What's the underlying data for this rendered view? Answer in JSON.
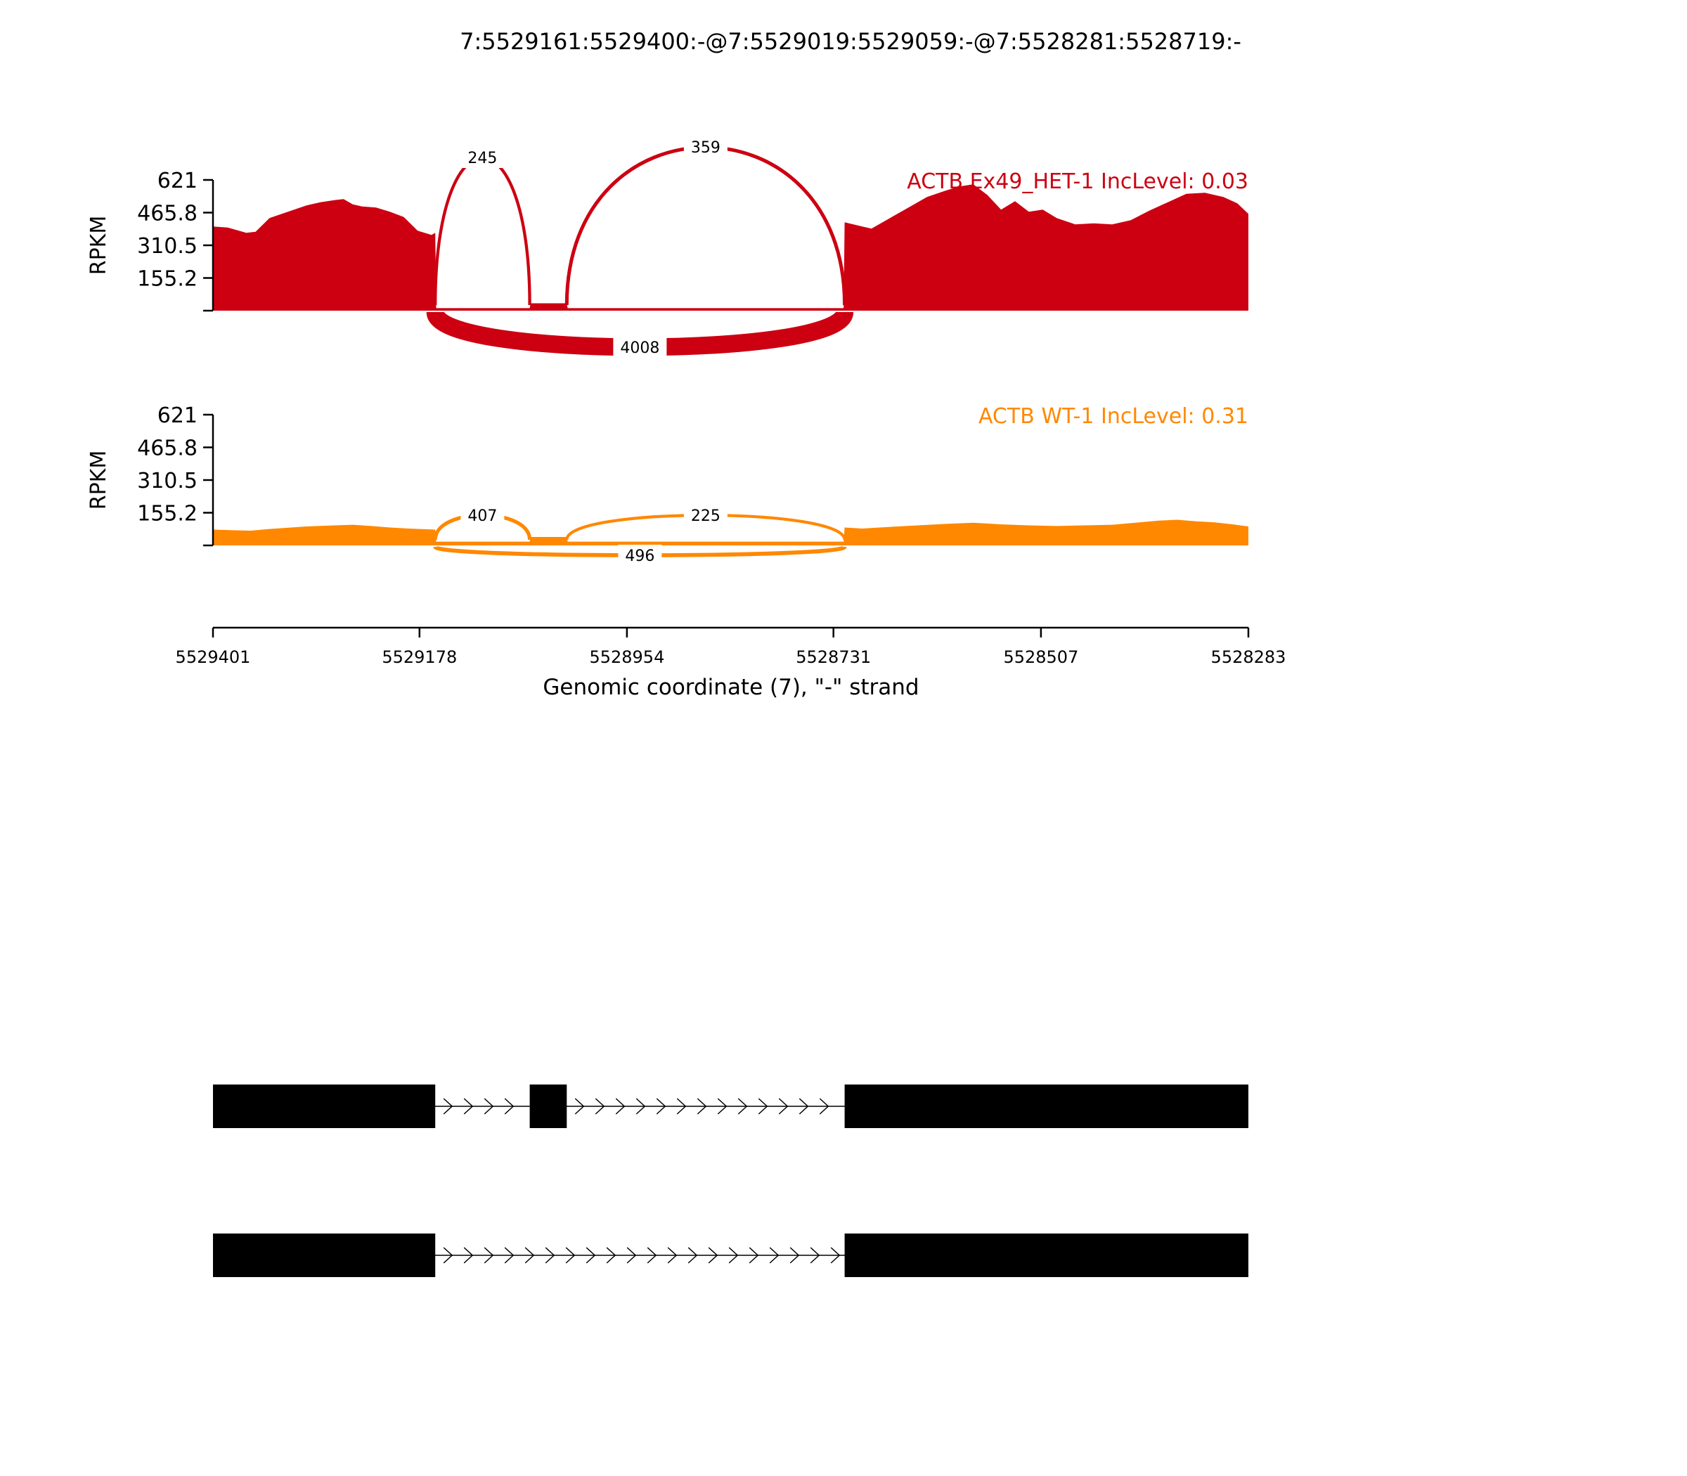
{
  "chart_data": {
    "type": "area",
    "subtype": "sashimi-plot",
    "title": "7:5529161:5529400:-@7:5529019:5529059:-@7:5528281:5528719:-",
    "xlabel": "Genomic coordinate (7), \"-\" strand",
    "x_ticks": [
      "5529401",
      "5529178",
      "5528954",
      "5528731",
      "5528507",
      "5528283"
    ],
    "xlim": [
      5529401,
      5528283
    ],
    "y_axis_label": "RPKM",
    "y_ticks": [
      "621",
      "465.8",
      "310.5",
      "155.2"
    ],
    "ylim": [
      0,
      621
    ],
    "grid": false,
    "exons": {
      "exon1": [
        5529401,
        5529161
      ],
      "exon2": [
        5529059,
        5529019
      ],
      "exon3": [
        5528719,
        5528283
      ]
    },
    "tracks": [
      {
        "name": "ACTB Ex49_HET-1 IncLevel: 0.03",
        "color": "#cc0011",
        "coverage": {
          "x": [
            5529401,
            5529385,
            5529365,
            5529355,
            5529340,
            5529320,
            5529300,
            5529285,
            5529270,
            5529260,
            5529250,
            5529240,
            5529225,
            5529210,
            5529195,
            5529180,
            5529165,
            5529161,
            5529160,
            5529059,
            5529058,
            5529020,
            5529019,
            5529018,
            5528720,
            5528719,
            5528700,
            5528690,
            5528670,
            5528650,
            5528630,
            5528610,
            5528595,
            5528580,
            5528565,
            5528550,
            5528535,
            5528520,
            5528505,
            5528490,
            5528470,
            5528450,
            5528430,
            5528410,
            5528390,
            5528370,
            5528350,
            5528330,
            5528310,
            5528295,
            5528283
          ],
          "y": [
            400,
            395,
            370,
            375,
            440,
            470,
            500,
            515,
            525,
            530,
            505,
            495,
            490,
            470,
            445,
            380,
            360,
            370,
            12,
            12,
            35,
            35,
            35,
            12,
            12,
            420,
            400,
            390,
            440,
            490,
            540,
            570,
            590,
            600,
            550,
            480,
            520,
            470,
            480,
            440,
            410,
            415,
            410,
            430,
            475,
            515,
            555,
            560,
            540,
            510,
            460
          ]
        },
        "junctions": [
          {
            "label": "245",
            "value": 245,
            "from": 5529161,
            "to": 5529059,
            "side": "above"
          },
          {
            "label": "359",
            "value": 359,
            "from": 5529019,
            "to": 5528719,
            "side": "above"
          },
          {
            "label": "4008",
            "value": 4008,
            "from": 5529161,
            "to": 5528719,
            "side": "below"
          }
        ]
      },
      {
        "name": "ACTB WT-1 IncLevel: 0.31",
        "color": "#ff8800",
        "coverage": {
          "x": [
            5529401,
            5529380,
            5529360,
            5529340,
            5529300,
            5529270,
            5529250,
            5529230,
            5529210,
            5529190,
            5529161,
            5529160,
            5529059,
            5529058,
            5529019,
            5529018,
            5528720,
            5528719,
            5528700,
            5528670,
            5528640,
            5528610,
            5528580,
            5528550,
            5528520,
            5528490,
            5528460,
            5528430,
            5528400,
            5528380,
            5528360,
            5528340,
            5528320,
            5528300,
            5528283
          ],
          "y": [
            75,
            72,
            70,
            78,
            90,
            95,
            98,
            92,
            85,
            80,
            75,
            18,
            18,
            40,
            40,
            18,
            18,
            85,
            80,
            88,
            95,
            102,
            108,
            100,
            95,
            92,
            95,
            98,
            110,
            118,
            122,
            115,
            110,
            100,
            90
          ]
        },
        "junctions": [
          {
            "label": "407",
            "value": 407,
            "from": 5529161,
            "to": 5529059,
            "side": "above"
          },
          {
            "label": "225",
            "value": 225,
            "from": 5529019,
            "to": 5528719,
            "side": "above"
          },
          {
            "label": "496",
            "value": 496,
            "from": 5529161,
            "to": 5528719,
            "side": "below"
          }
        ]
      }
    ],
    "gene_models": [
      {
        "exons": [
          [
            5529401,
            5529161
          ],
          [
            5529059,
            5529019
          ],
          [
            5528719,
            5528283
          ]
        ]
      },
      {
        "exons": [
          [
            5529401,
            5529161
          ],
          [
            5528719,
            5528283
          ]
        ]
      }
    ]
  }
}
